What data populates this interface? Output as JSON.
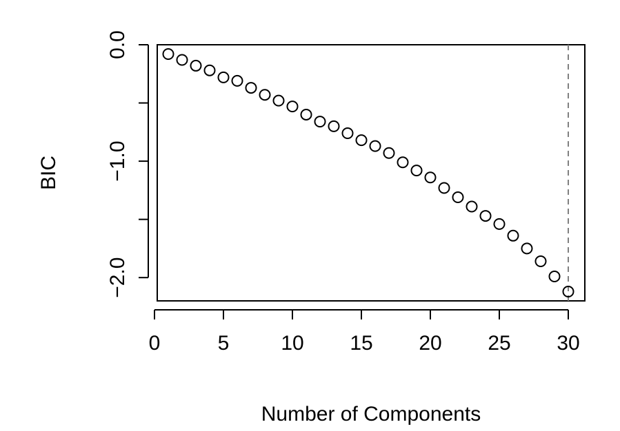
{
  "chart_data": {
    "type": "scatter",
    "title": "",
    "xlabel": "Number of Components",
    "ylabel": "BIC",
    "xlim": [
      0.2,
      31.2
    ],
    "ylim": [
      -2.2,
      0.0
    ],
    "x_ticks": [
      0,
      5,
      10,
      15,
      20,
      25,
      30
    ],
    "y_ticks": [
      0.0,
      -0.5,
      -1.0,
      -1.5,
      -2.0
    ],
    "x_tick_labels": [
      "0",
      "5",
      "10",
      "15",
      "20",
      "25",
      "30"
    ],
    "y_tick_labels": [
      "0.0",
      "",
      "−1.0",
      "",
      "−2.0"
    ],
    "grid": false,
    "marker": "open-circle",
    "colors": {
      "points": "#000000",
      "vline": "#808080"
    },
    "vline": {
      "x": 30,
      "style": "dashed"
    },
    "series": [
      {
        "x": [
          1,
          2,
          3,
          4,
          5,
          6,
          7,
          8,
          9,
          10,
          11,
          12,
          13,
          14,
          15,
          16,
          17,
          18,
          19,
          20,
          21,
          22,
          23,
          24,
          25,
          26,
          27,
          28,
          29,
          30
        ],
        "values": [
          -0.08,
          -0.13,
          -0.18,
          -0.22,
          -0.28,
          -0.31,
          -0.37,
          -0.43,
          -0.48,
          -0.53,
          -0.6,
          -0.66,
          -0.7,
          -0.76,
          -0.82,
          -0.87,
          -0.93,
          -1.01,
          -1.08,
          -1.14,
          -1.23,
          -1.31,
          -1.39,
          -1.47,
          -1.54,
          -1.64,
          -1.75,
          -1.86,
          -1.99,
          -2.12
        ]
      }
    ]
  }
}
